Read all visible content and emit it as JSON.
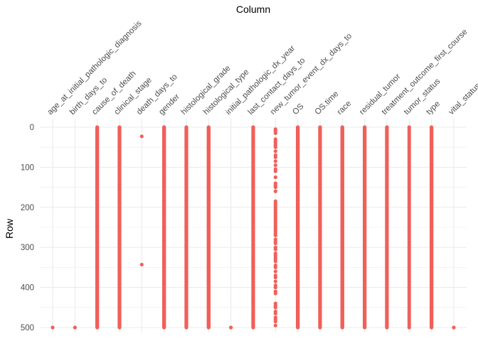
{
  "chart_data": {
    "type": "scatter",
    "title": "Column",
    "xlabel": "Column",
    "ylabel": "Row",
    "ylim": [
      0,
      505
    ],
    "y_reversed": true,
    "y_ticks": [
      0,
      100,
      200,
      300,
      400,
      500
    ],
    "grid": true,
    "categories": [
      "age_at_initial_pathologic_diagnosis",
      "birth_days_to",
      "cause_of_death",
      "clinical_stage",
      "death_days_to",
      "gender",
      "histological_grade",
      "histological_type",
      "initial_pathologic_dx_year",
      "last_contact_days_to",
      "new_tumor_event_dx_days_to",
      "OS",
      "OS.time",
      "race",
      "residual_tumor",
      "treatment_outcome_first_course",
      "tumor_status",
      "type",
      "vital_status"
    ],
    "series": [
      {
        "values": [
          {
            "mode": "points",
            "rows": [
              500
            ]
          },
          {
            "mode": "points",
            "rows": [
              500
            ]
          },
          {
            "mode": "full",
            "from": 0,
            "to": 500
          },
          {
            "mode": "full",
            "from": 0,
            "to": 500
          },
          {
            "mode": "points",
            "rows": [
              23,
              343
            ]
          },
          {
            "mode": "full",
            "from": 0,
            "to": 500
          },
          {
            "mode": "full",
            "from": 0,
            "to": 500
          },
          {
            "mode": "full",
            "from": 0,
            "to": 500
          },
          {
            "mode": "points",
            "rows": [
              500
            ]
          },
          {
            "mode": "full",
            "from": 0,
            "to": 500
          },
          {
            "mode": "points",
            "rows": [
              5,
              10,
              15,
              30,
              35,
              40,
              45,
              50,
              60,
              70,
              75,
              85,
              95,
              105,
              110,
              125,
              140,
              145,
              150,
              160,
              185,
              190,
              195,
              200,
              205,
              210,
              215,
              220,
              225,
              230,
              235,
              240,
              245,
              250,
              255,
              260,
              265,
              270,
              280,
              285,
              290,
              300,
              305,
              315,
              320,
              325,
              330,
              335,
              345,
              350,
              360,
              370,
              375,
              385,
              395,
              400,
              410,
              415,
              440,
              445,
              450,
              460,
              465,
              475,
              480,
              485,
              495
            ]
          },
          {
            "mode": "full",
            "from": 0,
            "to": 500
          },
          {
            "mode": "full",
            "from": 0,
            "to": 500
          },
          {
            "mode": "full",
            "from": 0,
            "to": 500
          },
          {
            "mode": "full",
            "from": 0,
            "to": 500
          },
          {
            "mode": "full",
            "from": 0,
            "to": 500
          },
          {
            "mode": "points",
            "rows": [
              0,
              5,
              10,
              15,
              20,
              25,
              30,
              35,
              40,
              45,
              50,
              55,
              60,
              65,
              70,
              75,
              80,
              85,
              90,
              95,
              100,
              105,
              110,
              115,
              120,
              125,
              130,
              135,
              140,
              145,
              150,
              155,
              160,
              165,
              170,
              175,
              180,
              185,
              190,
              195,
              200,
              205,
              210,
              215,
              220,
              225,
              230,
              235,
              240,
              245,
              250,
              255,
              260,
              265,
              270,
              275,
              280,
              285,
              290,
              295,
              300,
              305,
              310,
              315,
              320,
              325,
              330,
              335,
              340,
              345,
              350,
              355,
              360,
              365,
              370,
              375,
              380,
              385,
              390,
              395,
              400,
              405,
              410,
              415,
              420,
              425,
              430,
              435,
              440,
              445,
              450,
              455,
              460,
              465,
              470,
              475,
              480,
              485,
              490,
              495,
              500
            ]
          },
          {
            "mode": "full",
            "from": 0,
            "to": 500
          },
          {
            "mode": "points",
            "rows": [
              500
            ]
          }
        ]
      }
    ],
    "colors": {
      "point": "#f0605a",
      "grid": "#ebebeb",
      "tick": "#4d4d4d",
      "title": "#000000"
    }
  }
}
